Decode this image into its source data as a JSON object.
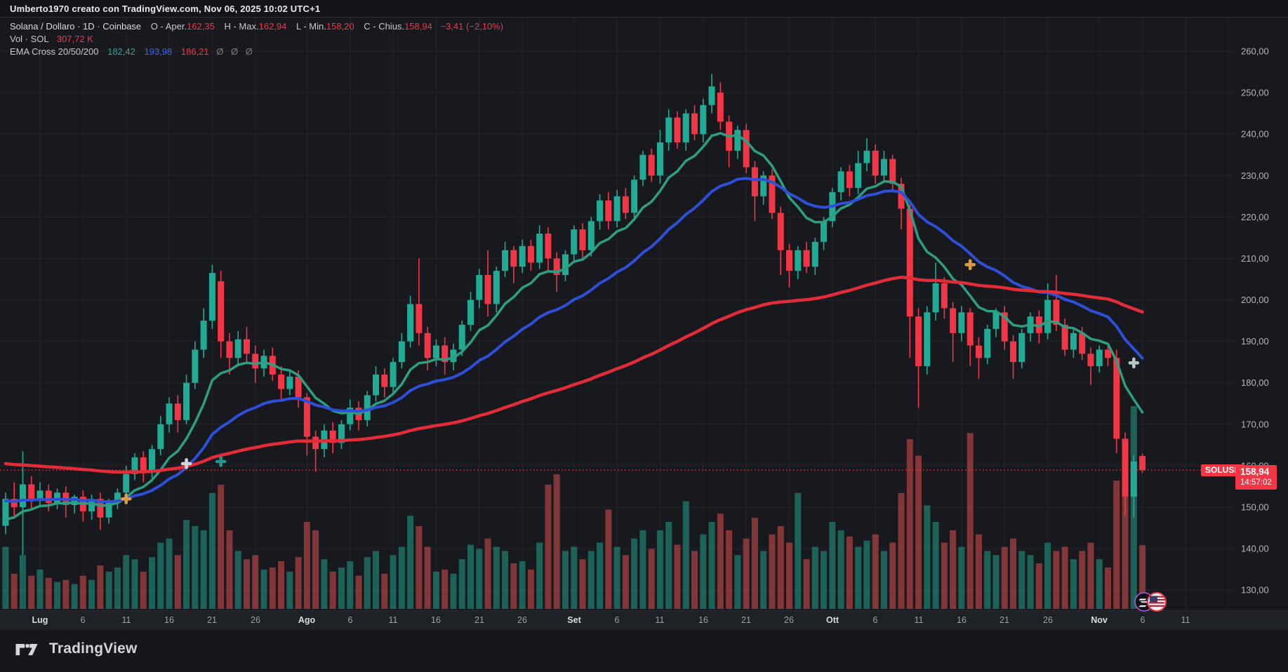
{
  "header": {
    "title": "Umberto1970 creato con TradingView.com, Nov 06, 2025 10:02 UTC+1"
  },
  "legend": {
    "row1": {
      "title": "Solana / Dollaro · 1D · Coinbase",
      "items": [
        {
          "label": "O - Aper.",
          "value": "162,35"
        },
        {
          "label": "H - Max.",
          "value": "162,94"
        },
        {
          "label": "L - Min.",
          "value": "158,20"
        },
        {
          "label": "C - Chius.",
          "value": "158,94"
        }
      ],
      "change": "−3,41 (−2,10%)"
    },
    "row2": {
      "label": "Vol · SOL",
      "value": "307,72 K"
    },
    "row3": {
      "label": "EMA Cross 20/50/200",
      "values": [
        {
          "text": "182,42"
        },
        {
          "text": "193,98"
        },
        {
          "text": "186,21"
        }
      ],
      "empty": [
        "Ø",
        "Ø",
        "Ø"
      ]
    }
  },
  "price_label": {
    "symbol": "SOLUSD",
    "price": "158,94",
    "countdown": "14:57:02"
  },
  "footer": {
    "brand": "TradingView"
  },
  "chart_data": {
    "type": "candlestick",
    "title": "Solana / Dollaro",
    "symbol": "SOLUSD",
    "exchange": "Coinbase",
    "interval": "1D",
    "grid": true,
    "legend_position": "top-left",
    "price_axis": {
      "min": 130,
      "max": 260,
      "step": 10,
      "decimal": "comma"
    },
    "last_price": 158.94,
    "colors": {
      "up": "#22ab94",
      "down": "#f23645",
      "vol_up": "rgba(34,171,148,0.5)",
      "vol_down": "rgba(239,83,80,0.5)",
      "grid": "rgba(255,255,255,0.055)",
      "axis_text": "#b2b6be"
    },
    "emas": [
      {
        "period": 20,
        "seed": 147.0,
        "color": "#2e9e83",
        "width": 3.5,
        "legend_color": "#23ab94"
      },
      {
        "period": 50,
        "seed": 151.5,
        "color": "#2e4fd8",
        "width": 4,
        "legend_color": "#3b64f6"
      },
      {
        "period": 200,
        "seed": 160.5,
        "color": "#e22c38",
        "width": 4.5,
        "legend_color": "#f23645"
      }
    ],
    "markers": [
      {
        "i": 14,
        "price": 152.0,
        "color": "#dd9a45"
      },
      {
        "i": 21,
        "price": 160.5,
        "color": "#cfd6dc"
      },
      {
        "i": 25,
        "price": 161.0,
        "color": "#27948a"
      },
      {
        "i": 112,
        "price": 208.5,
        "color": "#dd9a45"
      },
      {
        "i": 131,
        "price": 184.8,
        "color": "#b5c7ce"
      }
    ],
    "time_axis": {
      "ticks": [
        {
          "label": "Lug",
          "off": 0,
          "m": true
        },
        {
          "label": "6",
          "off": 5
        },
        {
          "label": "11",
          "off": 10
        },
        {
          "label": "16",
          "off": 15
        },
        {
          "label": "21",
          "off": 20
        },
        {
          "label": "26",
          "off": 25
        },
        {
          "label": "Ago",
          "off": 31,
          "m": true
        },
        {
          "label": "6",
          "off": 36
        },
        {
          "label": "11",
          "off": 41
        },
        {
          "label": "16",
          "off": 46
        },
        {
          "label": "21",
          "off": 51
        },
        {
          "label": "26",
          "off": 56
        },
        {
          "label": "Set",
          "off": 62,
          "m": true
        },
        {
          "label": "6",
          "off": 67
        },
        {
          "label": "11",
          "off": 72
        },
        {
          "label": "16",
          "off": 77
        },
        {
          "label": "21",
          "off": 82
        },
        {
          "label": "26",
          "off": 87
        },
        {
          "label": "Ott",
          "off": 92,
          "m": true
        },
        {
          "label": "6",
          "off": 97
        },
        {
          "label": "11",
          "off": 102
        },
        {
          "label": "16",
          "off": 107
        },
        {
          "label": "21",
          "off": 112
        },
        {
          "label": "26",
          "off": 117
        },
        {
          "label": "Nov",
          "off": 123,
          "m": true
        },
        {
          "label": "6",
          "off": 128
        },
        {
          "label": "11",
          "off": 133
        },
        {
          "label": "",
          "off": 138
        }
      ]
    },
    "volume_max": 1000,
    "volume_unit": "K",
    "candles": [
      [
        "27 Giu",
        145.5,
        153.5,
        143.5,
        152.0,
        300
      ],
      [
        "28 Giu",
        152.0,
        156.0,
        148.0,
        150.0,
        170
      ],
      [
        "29 Giu",
        150.0,
        163.5,
        138.5,
        155.5,
        260
      ],
      [
        "30 Giu",
        155.5,
        157.5,
        149.5,
        151.5,
        160
      ],
      [
        "1 Lug",
        151.5,
        156.0,
        150.0,
        154.0,
        190
      ],
      [
        "2 Lug",
        154.0,
        155.5,
        149.0,
        151.0,
        150
      ],
      [
        "3 Lug",
        151.0,
        154.5,
        149.5,
        153.5,
        130
      ],
      [
        "4 Lug",
        153.5,
        155.0,
        147.5,
        150.5,
        140
      ],
      [
        "5 Lug",
        150.5,
        153.0,
        148.5,
        152.5,
        120
      ],
      [
        "6 Lug",
        152.5,
        154.0,
        146.5,
        149.0,
        160
      ],
      [
        "7 Lug",
        149.0,
        153.0,
        147.0,
        152.0,
        140
      ],
      [
        "8 Lug",
        152.0,
        153.5,
        144.5,
        147.5,
        210
      ],
      [
        "9 Lug",
        147.5,
        152.0,
        146.0,
        151.0,
        180
      ],
      [
        "10 Lug",
        151.0,
        154.5,
        149.5,
        153.5,
        200
      ],
      [
        "11 Lug",
        153.5,
        160.0,
        152.0,
        158.0,
        260
      ],
      [
        "12 Lug",
        158.0,
        163.0,
        156.5,
        162.0,
        240
      ],
      [
        "13 Lug",
        162.0,
        163.5,
        156.0,
        158.5,
        180
      ],
      [
        "14 Lug",
        158.5,
        165.0,
        157.0,
        164.0,
        250
      ],
      [
        "15 Lug",
        164.0,
        172.0,
        162.5,
        170.0,
        320
      ],
      [
        "16 Lug",
        170.0,
        176.5,
        168.0,
        175.0,
        340
      ],
      [
        "17 Lug",
        175.0,
        177.0,
        168.0,
        171.0,
        260
      ],
      [
        "18 Lug",
        171.0,
        182.0,
        170.0,
        180.0,
        430
      ],
      [
        "19 Lug",
        180.0,
        190.0,
        178.5,
        188.0,
        400
      ],
      [
        "20 Lug",
        188.0,
        198.0,
        186.0,
        195.0,
        380
      ],
      [
        "21 Lug",
        195.0,
        208.5,
        193.0,
        206.5,
        560
      ],
      [
        "22 Lug",
        204.5,
        207.0,
        186.0,
        190.0,
        600
      ],
      [
        "23 Lug",
        190.0,
        192.0,
        182.0,
        186.0,
        380
      ],
      [
        "24 Lug",
        186.0,
        192.5,
        184.0,
        190.5,
        280
      ],
      [
        "25 Lug",
        190.5,
        193.5,
        185.0,
        187.0,
        240
      ],
      [
        "26 Lug",
        187.0,
        189.0,
        180.0,
        183.5,
        260
      ],
      [
        "27 Lug",
        183.5,
        188.0,
        181.5,
        186.5,
        190
      ],
      [
        "28 Lug",
        186.5,
        188.5,
        180.5,
        182.0,
        200
      ],
      [
        "29 Lug",
        182.0,
        184.0,
        175.5,
        178.5,
        230
      ],
      [
        "30 Lug",
        178.5,
        183.0,
        177.0,
        181.5,
        180
      ],
      [
        "31 Lug",
        181.5,
        183.0,
        174.0,
        176.5,
        250
      ],
      [
        "1 Ago",
        176.5,
        177.5,
        162.5,
        167.0,
        420
      ],
      [
        "2 Ago",
        167.0,
        168.5,
        158.5,
        164.0,
        380
      ],
      [
        "3 Ago",
        164.0,
        170.0,
        162.0,
        168.5,
        240
      ],
      [
        "4 Ago",
        168.5,
        170.5,
        163.0,
        165.5,
        180
      ],
      [
        "5 Ago",
        165.5,
        171.0,
        164.0,
        170.0,
        200
      ],
      [
        "6 Ago",
        170.0,
        176.0,
        168.5,
        174.0,
        230
      ],
      [
        "7 Ago",
        174.0,
        175.5,
        168.5,
        171.0,
        160
      ],
      [
        "8 Ago",
        171.0,
        178.0,
        169.5,
        177.0,
        250
      ],
      [
        "9 Ago",
        177.0,
        184.0,
        175.5,
        182.0,
        280
      ],
      [
        "10 Ago",
        182.0,
        183.5,
        176.5,
        179.0,
        170
      ],
      [
        "11 Ago",
        179.0,
        186.0,
        177.5,
        185.0,
        260
      ],
      [
        "12 Ago",
        185.0,
        192.0,
        183.5,
        190.0,
        300
      ],
      [
        "13 Ago",
        190.0,
        201.0,
        188.5,
        199.0,
        450
      ],
      [
        "14 Ago",
        199.0,
        210.0,
        189.0,
        192.0,
        400
      ],
      [
        "15 Ago",
        192.0,
        193.5,
        183.0,
        186.0,
        300
      ],
      [
        "16 Ago",
        186.0,
        190.5,
        184.0,
        189.0,
        180
      ],
      [
        "17 Ago",
        189.0,
        191.0,
        182.0,
        185.0,
        190
      ],
      [
        "18 Ago",
        185.0,
        189.5,
        183.0,
        188.0,
        170
      ],
      [
        "19 Ago",
        188.0,
        195.0,
        186.5,
        194.0,
        240
      ],
      [
        "20 Ago",
        194.0,
        202.0,
        192.5,
        200.0,
        310
      ],
      [
        "21 Ago",
        200.0,
        207.5,
        198.0,
        206.0,
        290
      ],
      [
        "22 Ago",
        206.0,
        212.0,
        196.0,
        199.0,
        340
      ],
      [
        "23 Ago",
        199.0,
        208.0,
        197.0,
        207.0,
        300
      ],
      [
        "24 Ago",
        207.0,
        214.0,
        205.5,
        212.0,
        280
      ],
      [
        "25 Ago",
        212.0,
        213.0,
        204.0,
        208.0,
        220
      ],
      [
        "26 Ago",
        208.0,
        214.5,
        206.5,
        213.0,
        230
      ],
      [
        "27 Ago",
        213.0,
        214.5,
        207.0,
        209.0,
        190
      ],
      [
        "28 Ago",
        209.0,
        218.0,
        207.5,
        216.0,
        320
      ],
      [
        "29 Ago",
        216.0,
        217.5,
        207.0,
        210.0,
        600
      ],
      [
        "30 Ago",
        210.0,
        211.5,
        202.0,
        206.0,
        650
      ],
      [
        "31 Ago",
        206.0,
        212.0,
        204.5,
        211.0,
        280
      ],
      [
        "1 Set",
        211.0,
        218.0,
        209.5,
        217.0,
        300
      ],
      [
        "2 Set",
        217.0,
        218.5,
        210.0,
        212.0,
        240
      ],
      [
        "3 Set",
        212.0,
        220.0,
        210.5,
        219.0,
        280
      ],
      [
        "4 Set",
        219.0,
        225.5,
        217.0,
        224.0,
        320
      ],
      [
        "5 Set",
        224.0,
        226.0,
        217.0,
        219.0,
        480
      ],
      [
        "6 Set",
        219.0,
        226.5,
        217.5,
        225.0,
        300
      ],
      [
        "7 Set",
        225.0,
        227.0,
        219.5,
        221.0,
        260
      ],
      [
        "8 Set",
        221.0,
        230.0,
        219.0,
        229.0,
        340
      ],
      [
        "9 Set",
        229.0,
        236.0,
        227.5,
        235.0,
        380
      ],
      [
        "10 Set",
        235.0,
        236.5,
        228.5,
        230.0,
        290
      ],
      [
        "11 Set",
        230.0,
        241.0,
        228.0,
        238.0,
        380
      ],
      [
        "12 Set",
        238.0,
        246.0,
        236.0,
        244.0,
        420
      ],
      [
        "13 Set",
        244.0,
        245.5,
        236.5,
        238.0,
        310
      ],
      [
        "14 Set",
        238.0,
        246.0,
        236.0,
        245.0,
        520
      ],
      [
        "15 Set",
        245.0,
        247.0,
        238.5,
        240.0,
        280
      ],
      [
        "16 Set",
        240.0,
        248.5,
        238.0,
        247.0,
        360
      ],
      [
        "17 Set",
        247.0,
        254.5,
        245.0,
        251.5,
        420
      ],
      [
        "18 Set",
        250.0,
        252.5,
        241.0,
        243.0,
        460
      ],
      [
        "19 Set",
        243.0,
        244.5,
        232.0,
        236.0,
        380
      ],
      [
        "20 Set",
        236.0,
        242.0,
        234.0,
        241.0,
        260
      ],
      [
        "21 Set",
        241.0,
        242.5,
        230.5,
        232.0,
        340
      ],
      [
        "22 Set",
        232.0,
        233.5,
        219.0,
        225.0,
        440
      ],
      [
        "23 Set",
        225.0,
        231.0,
        223.0,
        230.0,
        280
      ],
      [
        "24 Set",
        230.0,
        231.5,
        219.5,
        221.0,
        360
      ],
      [
        "25 Set",
        221.0,
        222.5,
        206.0,
        212.0,
        400
      ],
      [
        "26 Set",
        212.0,
        213.5,
        203.0,
        207.0,
        320
      ],
      [
        "27 Set",
        207.0,
        213.0,
        205.0,
        212.0,
        560
      ],
      [
        "28 Set",
        212.0,
        214.0,
        206.5,
        208.0,
        240
      ],
      [
        "29 Set",
        208.0,
        215.0,
        206.0,
        214.0,
        300
      ],
      [
        "30 Set",
        214.0,
        220.0,
        212.0,
        219.0,
        280
      ],
      [
        "1 Ott",
        219.0,
        227.0,
        217.5,
        226.0,
        420
      ],
      [
        "2 Ott",
        226.0,
        232.0,
        224.0,
        231.0,
        380
      ],
      [
        "3 Ott",
        231.0,
        232.5,
        225.0,
        227.0,
        350
      ],
      [
        "4 Ott",
        227.0,
        236.0,
        225.5,
        233.0,
        300
      ],
      [
        "5 Ott",
        233.0,
        239.0,
        231.0,
        236.0,
        330
      ],
      [
        "6 Ott",
        236.0,
        237.5,
        228.0,
        230.0,
        360
      ],
      [
        "7 Ott",
        230.0,
        236.0,
        228.5,
        234.0,
        280
      ],
      [
        "8 Ott",
        234.0,
        235.0,
        226.0,
        228.0,
        320
      ],
      [
        "9 Ott",
        228.0,
        229.5,
        217.0,
        222.0,
        560
      ],
      [
        "10 Ott",
        222.0,
        223.0,
        186.0,
        196.0,
        820
      ],
      [
        "11 Ott",
        196.0,
        198.0,
        174.0,
        184.0,
        740
      ],
      [
        "12 Ott",
        184.0,
        198.5,
        182.0,
        197.0,
        500
      ],
      [
        "13 Ott",
        197.0,
        209.0,
        195.0,
        204.0,
        420
      ],
      [
        "14 Ott",
        204.0,
        205.5,
        195.5,
        198.0,
        320
      ],
      [
        "15 Ott",
        198.0,
        199.5,
        185.0,
        192.0,
        380
      ],
      [
        "16 Ott",
        192.0,
        198.5,
        190.0,
        197.0,
        300
      ],
      [
        "17 Ott",
        197.0,
        198.0,
        184.0,
        189.0,
        850
      ],
      [
        "18 Ott",
        189.0,
        191.0,
        181.0,
        186.0,
        360
      ],
      [
        "19 Ott",
        186.0,
        194.0,
        184.5,
        193.0,
        280
      ],
      [
        "20 Ott",
        193.0,
        198.0,
        191.0,
        197.0,
        260
      ],
      [
        "21 Ott",
        197.0,
        198.5,
        188.0,
        190.0,
        300
      ],
      [
        "22 Ott",
        190.0,
        191.5,
        181.0,
        185.0,
        340
      ],
      [
        "23 Ott",
        185.0,
        193.0,
        183.5,
        192.0,
        280
      ],
      [
        "24 Ott",
        192.0,
        197.0,
        190.0,
        196.0,
        260
      ],
      [
        "25 Ott",
        196.0,
        197.5,
        189.5,
        192.0,
        220
      ],
      [
        "26 Ott",
        192.0,
        204.0,
        190.5,
        200.0,
        320
      ],
      [
        "27 Ott",
        200.0,
        206.0,
        192.5,
        194.0,
        280
      ],
      [
        "28 Ott",
        194.0,
        195.5,
        186.5,
        188.0,
        300
      ],
      [
        "29 Ott",
        188.0,
        193.0,
        186.0,
        192.0,
        240
      ],
      [
        "30 Ott",
        192.0,
        193.5,
        185.5,
        187.0,
        280
      ],
      [
        "31 Ott",
        187.0,
        188.5,
        179.5,
        184.0,
        320
      ],
      [
        "1 Nov",
        184.0,
        189.0,
        182.5,
        188.0,
        240
      ],
      [
        "2 Nov",
        188.0,
        189.5,
        184.0,
        186.0,
        200
      ],
      [
        "3 Nov",
        186.0,
        188.0,
        163.0,
        166.5,
        620
      ],
      [
        "4 Nov",
        166.5,
        168.0,
        148.0,
        152.5,
        760
      ],
      [
        "5 Nov",
        152.5,
        162.5,
        147.5,
        161.0,
        980
      ],
      [
        "6 Nov",
        162.35,
        162.94,
        158.2,
        158.94,
        307.72
      ]
    ]
  }
}
